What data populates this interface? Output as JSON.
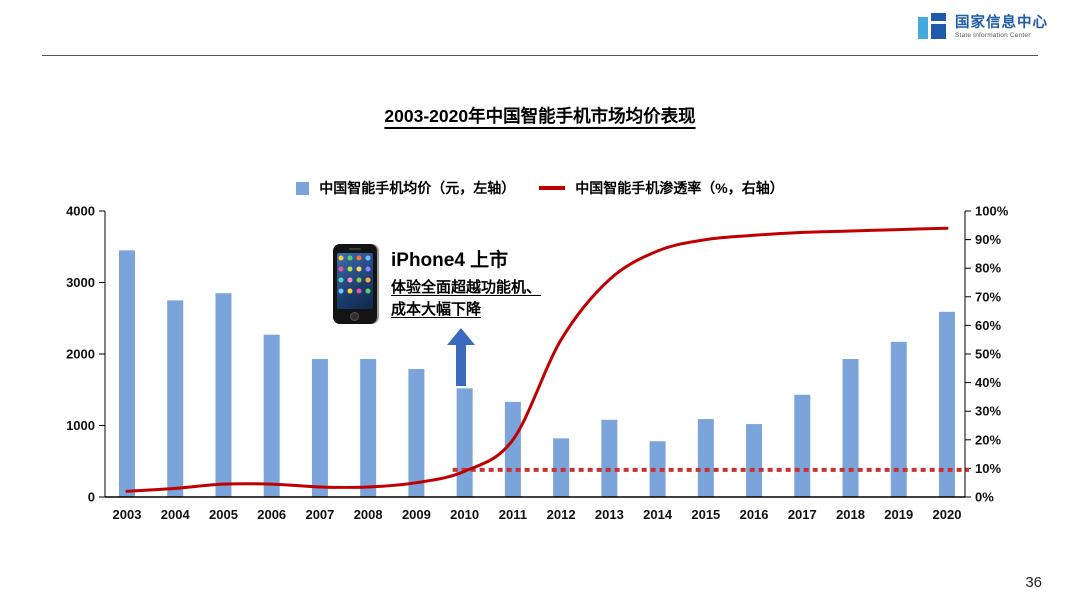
{
  "header": {
    "logo": {
      "name_cn": "国家信息中心",
      "name_en": "State Information Center"
    }
  },
  "title": "2003-2020年中国智能手机市场均价表现",
  "legend": {
    "bar_label": "中国智能手机均价（元，左轴）",
    "line_label": "中国智能手机渗透率（%，右轴）"
  },
  "annotation": {
    "heading": "iPhone4 上市",
    "line1": "体验全面超越功能机、",
    "line2": "成本大幅下降"
  },
  "page_number": "36",
  "colors": {
    "bar": "#7aa4da",
    "line": "#c00000",
    "reference": "#c83232",
    "arrow": "#3a6bbf",
    "logo_blue": "#1f5bab"
  },
  "chart_data": {
    "type": "combo-bar-line",
    "title": "2003-2020年中国智能手机市场均价表现",
    "categories": [
      "2003",
      "2004",
      "2005",
      "2006",
      "2007",
      "2008",
      "2009",
      "2010",
      "2011",
      "2012",
      "2013",
      "2014",
      "2015",
      "2016",
      "2017",
      "2018",
      "2019",
      "2020"
    ],
    "series": [
      {
        "name": "中国智能手机均价（元，左轴）",
        "type": "bar",
        "axis": "left",
        "values": [
          3450,
          2750,
          2850,
          2270,
          1930,
          1930,
          1790,
          1520,
          1330,
          820,
          1080,
          780,
          1090,
          1020,
          1430,
          1930,
          2170,
          2590
        ]
      },
      {
        "name": "中国智能手机渗透率（%，右轴）",
        "type": "line",
        "axis": "right",
        "values": [
          2,
          3,
          4.5,
          4.5,
          3.5,
          3.5,
          5,
          9,
          20,
          55,
          76,
          86,
          90,
          91.5,
          92.5,
          93,
          93.5,
          94
        ]
      }
    ],
    "left_axis": {
      "min": 0,
      "max": 4000,
      "step": 1000,
      "ticks": [
        "0",
        "1000",
        "2000",
        "3000",
        "4000"
      ]
    },
    "right_axis": {
      "min": 0,
      "max": 100,
      "step": 10,
      "ticks": [
        "0%",
        "10%",
        "20%",
        "30%",
        "40%",
        "50%",
        "60%",
        "70%",
        "80%",
        "90%",
        "100%"
      ]
    },
    "reference_line": {
      "axis": "right",
      "value": 9.5,
      "from_category": "2010",
      "to_category": "2020",
      "style": "dashed"
    },
    "legend_position": "top",
    "grid": false
  }
}
